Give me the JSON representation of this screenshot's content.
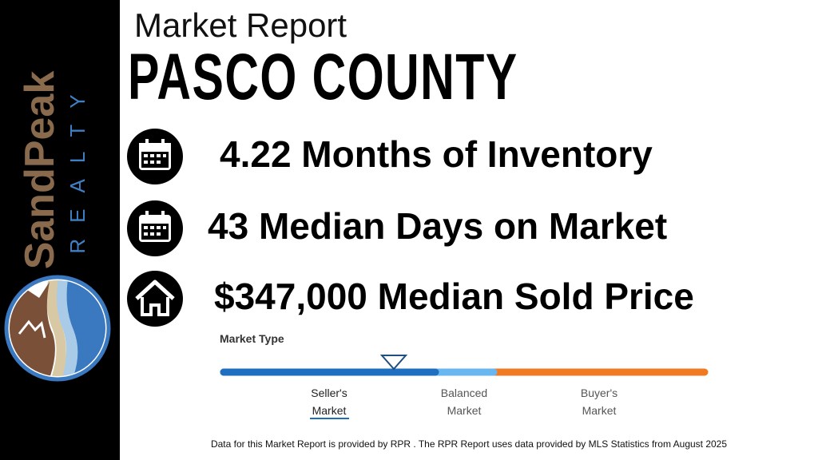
{
  "brand": {
    "name": "SandPeak",
    "tagline": "REALTY"
  },
  "header": {
    "title": "Market Report",
    "county": "Pasco County"
  },
  "stats": [
    "4.22 Months of Inventory",
    "43 Median Days on Market",
    "$347,000 Median Sold Price"
  ],
  "market_type": {
    "title": "Market Type",
    "labels": [
      [
        "Seller's",
        "Market"
      ],
      [
        "Balanced",
        "Market"
      ],
      [
        "Buyer's",
        "Market"
      ]
    ]
  },
  "footer": "Data for this Market Report is provided by RPR . The RPR Report uses data provided by MLS Statistics from August 2025"
}
